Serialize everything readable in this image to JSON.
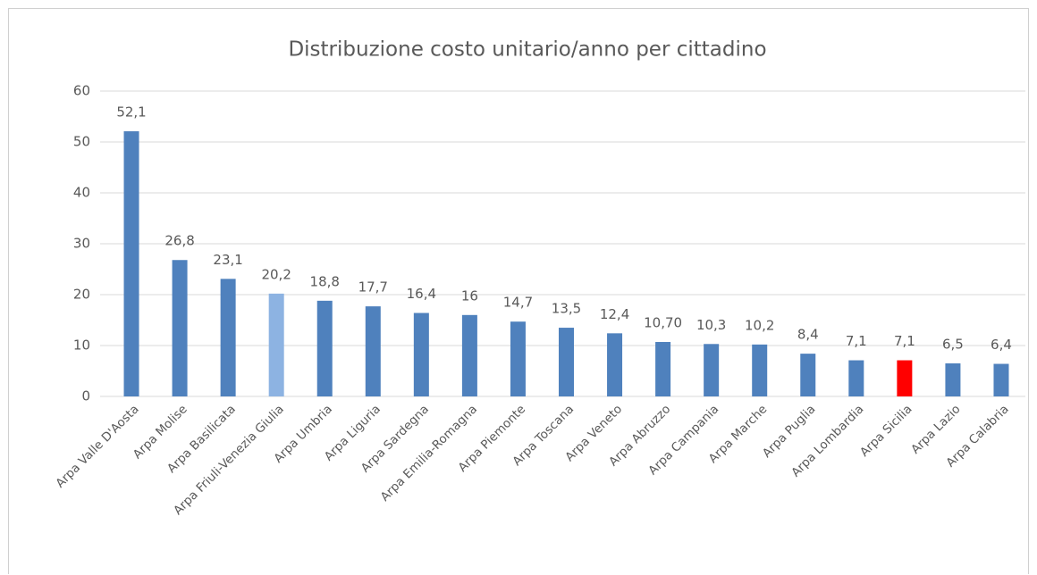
{
  "chart_data": {
    "type": "bar",
    "title": "Distribuzione costo unitario/anno per cittadino",
    "categories": [
      "Arpa Valle D'Aosta",
      "Arpa Molise",
      "Arpa Basilicata",
      "Arpa Friuli-Venezia Giulia",
      "Arpa Umbria",
      "Arpa Liguria",
      "Arpa Sardegna",
      "Arpa Emilia-Romagna",
      "Arpa Piemonte",
      "Arpa Toscana",
      "Arpa Veneto",
      "Arpa Abruzzo",
      "Arpa Campania",
      "Arpa Marche",
      "Arpa Puglia",
      "Arpa Lombardia",
      "Arpa Sicilia",
      "Arpa Lazio",
      "Arpa Calabria"
    ],
    "values": [
      52.1,
      26.8,
      23.1,
      20.2,
      18.8,
      17.7,
      16.4,
      16,
      14.7,
      13.5,
      12.4,
      10.7,
      10.3,
      10.2,
      8.4,
      7.1,
      7.1,
      6.5,
      6.4
    ],
    "value_labels": [
      "52,1",
      "26,8",
      "23,1",
      "20,2",
      "18,8",
      "17,7",
      "16,4",
      "16",
      "14,7",
      "13,5",
      "12,4",
      "10,70",
      "10,3",
      "10,2",
      "8,4",
      "7,1",
      "7,1",
      "6,5",
      "6,4"
    ],
    "colors": [
      "#4f81bd",
      "#4f81bd",
      "#4f81bd",
      "#8db3e2",
      "#4f81bd",
      "#4f81bd",
      "#4f81bd",
      "#4f81bd",
      "#4f81bd",
      "#4f81bd",
      "#4f81bd",
      "#4f81bd",
      "#4f81bd",
      "#4f81bd",
      "#4f81bd",
      "#4f81bd",
      "#ff0000",
      "#4f81bd",
      "#4f81bd"
    ],
    "ylim": [
      0,
      60
    ],
    "yticks": [
      0,
      10,
      20,
      30,
      40,
      50,
      60
    ],
    "grid": true
  }
}
